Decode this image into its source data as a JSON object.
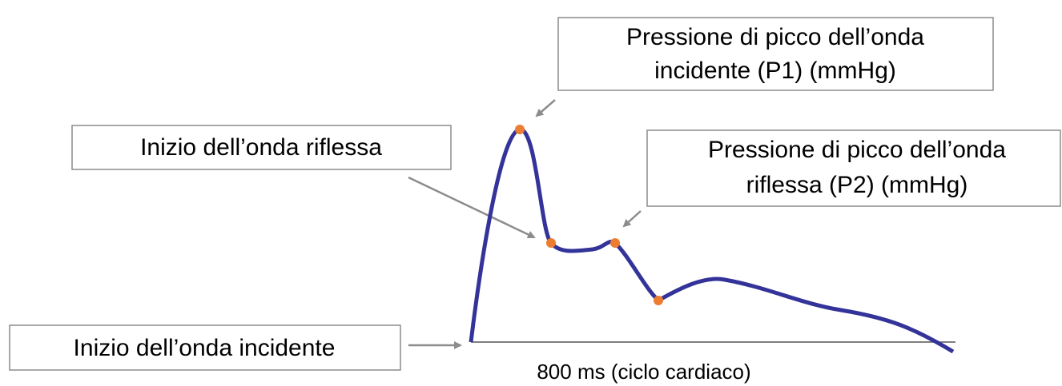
{
  "labels": [
    {
      "lines": [
        "Pressione di picco dell’onda",
        "incidente (P1) (mmHg)"
      ]
    },
    {
      "lines": [
        "Inizio  dell’onda riflessa"
      ]
    },
    {
      "lines": [
        "Pressione di picco dell’onda",
        "riflessa (P2) (mmHg)"
      ]
    },
    {
      "lines": [
        "Inizio  dell’onda incidente"
      ]
    }
  ],
  "axis_label": "800 ms (ciclo cardiaco)"
}
